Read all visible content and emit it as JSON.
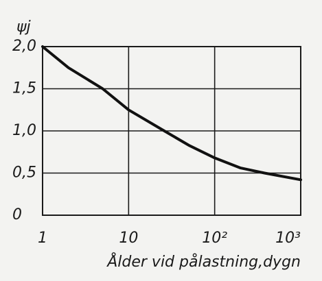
{
  "chart_data": {
    "type": "line",
    "y_label": "ψj",
    "x_label": "Ålder vid pålastning,dygn",
    "x": [
      1,
      2,
      5,
      10,
      26,
      50,
      100,
      200,
      380,
      1000
    ],
    "values": [
      2.0,
      1.75,
      1.5,
      1.25,
      1.0,
      0.83,
      0.68,
      0.56,
      0.5,
      0.42
    ],
    "color": "#111111",
    "xscale": "log",
    "grid": true,
    "xlim": [
      1,
      1000
    ],
    "xticks": [
      1,
      10,
      {
        "value": 100,
        "label": "10²"
      },
      {
        "value": 1000,
        "label": "10³"
      }
    ],
    "ylim": [
      0,
      2
    ],
    "yticks": [
      0,
      {
        "value": 0.5,
        "label": "0,5"
      },
      {
        "value": 1,
        "label": "1,0"
      },
      {
        "value": 1.5,
        "label": "1,5"
      },
      {
        "value": 2,
        "label": "2,0"
      }
    ]
  }
}
